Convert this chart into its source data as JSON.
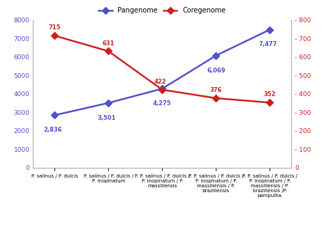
{
  "x_labels": [
    "P. salinus / P. dulcis",
    "P. salinus / P. dulcis /\nP. inopinatum",
    "P. P. salinus / P. dulcis /\nP. inopinatum / P.\nmassiliensis",
    "P. P. salinus / P. dulcis /\nP. inopinatum / P.\nmassiliensis / P.\nbraziliensis",
    "P. P. salinus / P. dulcis /\nP. inopinatum / P.\nmassiliensis / P.\nbraziliensis /P.\npampulha"
  ],
  "pangenome_values": [
    2836,
    3501,
    4275,
    6069,
    7477
  ],
  "coregenome_values": [
    715,
    631,
    422,
    376,
    352
  ],
  "pangenome_color": "#5050cc",
  "coregenome_color": "#cc2020",
  "pangenome_label": "Pangenome",
  "coregenome_label": "Coregenome",
  "left_ylim": [
    0,
    8000
  ],
  "right_ylim": [
    0,
    800
  ],
  "left_yticks": [
    0,
    1000,
    2000,
    3000,
    4000,
    5000,
    6000,
    7000,
    8000
  ],
  "right_yticks": [
    0,
    100,
    200,
    300,
    400,
    500,
    600,
    700,
    800
  ],
  "background_color": "#ffffff",
  "marker": "D",
  "linewidth": 1.8,
  "markersize": 5,
  "pangenome_annotations": [
    "2,836",
    "3,501",
    "4,275",
    "6,069",
    "7,477"
  ],
  "coregenome_annotations": [
    "715",
    "631",
    "422",
    "376",
    "352"
  ]
}
